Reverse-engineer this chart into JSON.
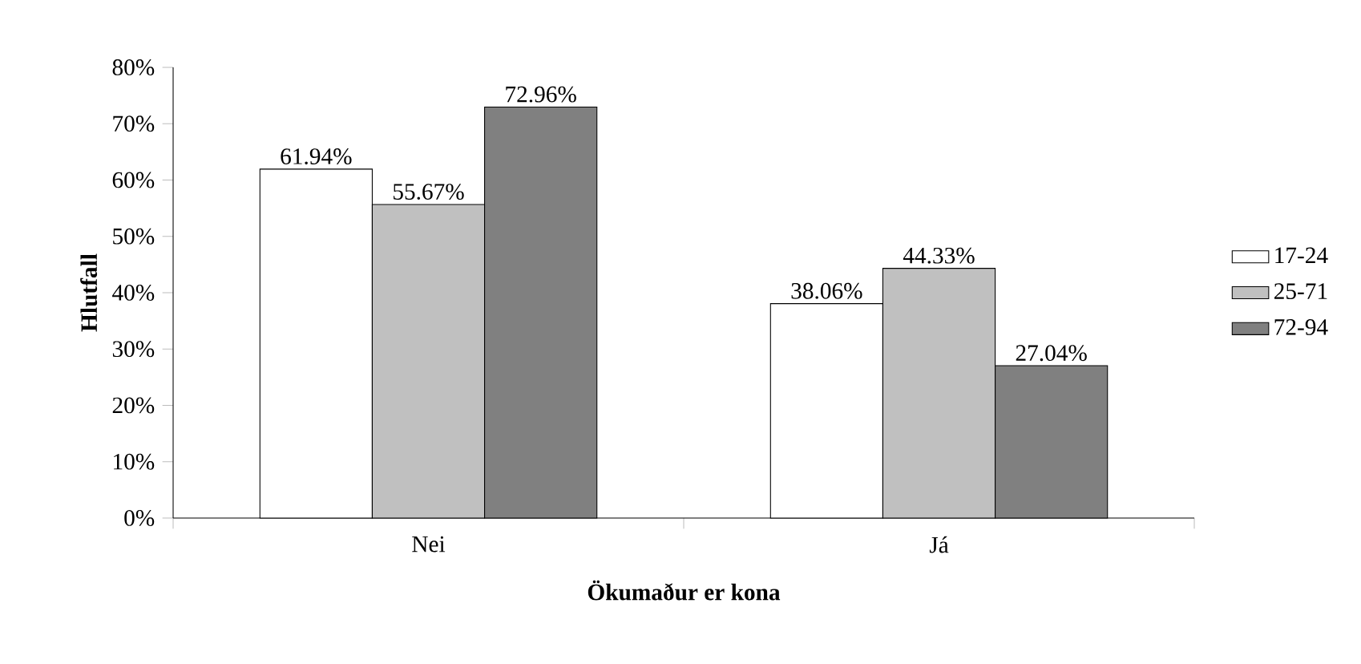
{
  "chart_data": {
    "type": "bar",
    "xlabel": "Ökumaður er kona",
    "ylabel": "Hlutfall",
    "categories": [
      "Nei",
      "Já"
    ],
    "series": [
      {
        "name": "17-24",
        "color": "#ffffff",
        "values": [
          61.94,
          38.06
        ],
        "value_labels": [
          "61.94%",
          "38.06%"
        ]
      },
      {
        "name": "25-71",
        "color": "#c0c0c0",
        "values": [
          55.67,
          44.33
        ],
        "value_labels": [
          "55.67%",
          "44.33%"
        ]
      },
      {
        "name": "72-94",
        "color": "#808080",
        "values": [
          72.96,
          27.04
        ],
        "value_labels": [
          "72.96%",
          "27.04%"
        ]
      }
    ],
    "ylim": [
      0,
      80
    ],
    "yticks": [
      {
        "value": 0,
        "label": "0%"
      },
      {
        "value": 10,
        "label": "10%"
      },
      {
        "value": 20,
        "label": "20%"
      },
      {
        "value": 30,
        "label": "30%"
      },
      {
        "value": 40,
        "label": "40%"
      },
      {
        "value": 50,
        "label": "50%"
      },
      {
        "value": 60,
        "label": "60%"
      },
      {
        "value": 70,
        "label": "70%"
      },
      {
        "value": 80,
        "label": "80%"
      }
    ],
    "grid": false,
    "legend": "right"
  }
}
